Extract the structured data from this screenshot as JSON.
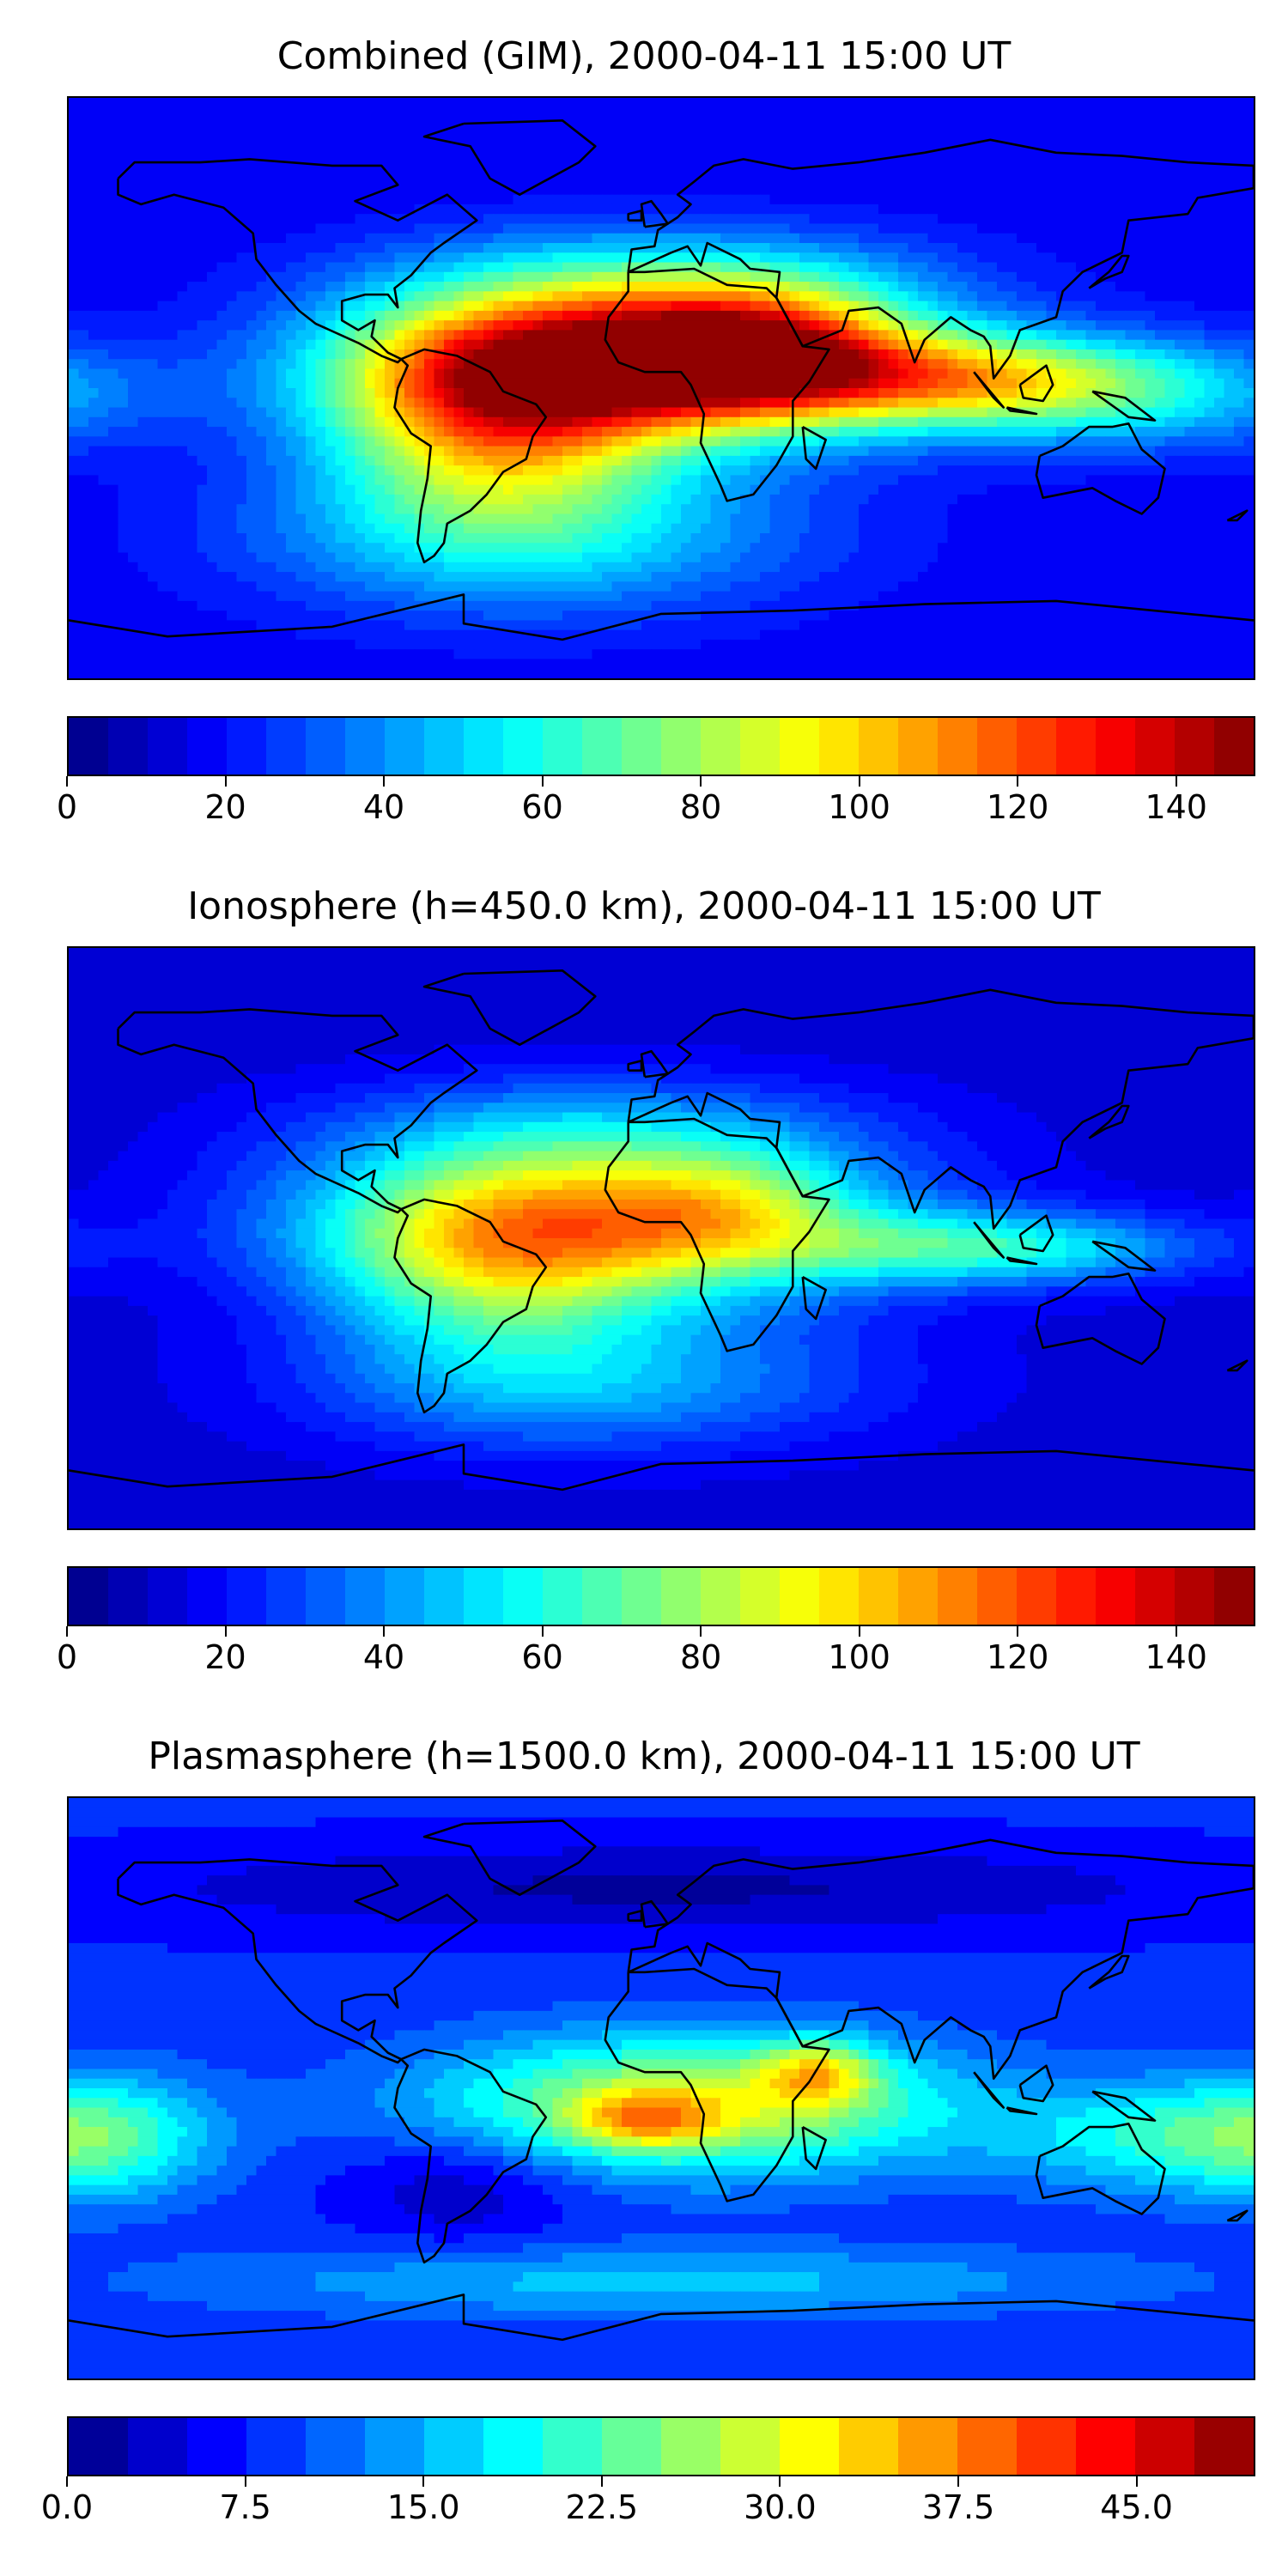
{
  "chart_data": [
    {
      "type": "heatmap",
      "title": "Combined (GIM), 2000-04-11 15:00 UT",
      "colormap": "jet",
      "colorbar": {
        "min": 0,
        "max": 150,
        "levels": 30,
        "ticks": [
          0,
          20,
          40,
          60,
          80,
          100,
          120,
          140
        ],
        "tick_labels": [
          "0",
          "20",
          "40",
          "60",
          "80",
          "100",
          "120",
          "140"
        ]
      },
      "field": {
        "background": 16,
        "blobs": [
          {
            "lon": -10,
            "lat": 8,
            "sx": 55,
            "sy": 16,
            "amp": 120
          },
          {
            "lon": -50,
            "lat": -10,
            "sx": 35,
            "sy": 22,
            "amp": 70
          },
          {
            "lon": 30,
            "lat": 12,
            "sx": 30,
            "sy": 14,
            "amp": 60
          },
          {
            "lon": 90,
            "lat": 3,
            "sx": 40,
            "sy": 10,
            "amp": 55
          },
          {
            "lon": 140,
            "lat": -2,
            "sx": 45,
            "sy": 12,
            "amp": 35
          },
          {
            "lon": -40,
            "lat": -45,
            "sx": 60,
            "sy": 18,
            "amp": 35
          },
          {
            "lon": 0,
            "lat": 35,
            "sx": 60,
            "sy": 12,
            "amp": 25
          }
        ]
      }
    },
    {
      "type": "heatmap",
      "title": "Ionosphere  (h=450.0 km), 2000-04-11 15:00 UT",
      "colormap": "jet",
      "colorbar": {
        "min": 0,
        "max": 150,
        "levels": 30,
        "ticks": [
          0,
          20,
          40,
          60,
          80,
          100,
          120,
          140
        ],
        "tick_labels": [
          "0",
          "20",
          "40",
          "60",
          "80",
          "100",
          "120",
          "140"
        ]
      },
      "field": {
        "background": 12,
        "blobs": [
          {
            "lon": -20,
            "lat": 5,
            "sx": 60,
            "sy": 18,
            "amp": 78
          },
          {
            "lon": -50,
            "lat": -10,
            "sx": 35,
            "sy": 22,
            "amp": 40
          },
          {
            "lon": 20,
            "lat": 10,
            "sx": 25,
            "sy": 12,
            "amp": 25
          },
          {
            "lon": 100,
            "lat": -3,
            "sx": 45,
            "sy": 8,
            "amp": 45
          },
          {
            "lon": -20,
            "lat": -45,
            "sx": 60,
            "sy": 15,
            "amp": 30
          },
          {
            "lon": -20,
            "lat": 35,
            "sx": 60,
            "sy": 12,
            "amp": 20
          }
        ]
      }
    },
    {
      "type": "heatmap",
      "title": "Plasmasphere (h=1500.0 km), 2000-04-11 15:00 UT",
      "colormap": "jet",
      "colorbar": {
        "min": 0,
        "max": 50,
        "levels": 20,
        "ticks": [
          0,
          7.5,
          15,
          22.5,
          30,
          37.5,
          45
        ],
        "tick_labels": [
          "0.0",
          "7.5",
          "15.0",
          "22.5",
          "30.0",
          "37.5",
          "45.0"
        ]
      },
      "field": {
        "background": 8,
        "blobs": [
          {
            "lon": 10,
            "lat": -5,
            "sx": 55,
            "sy": 15,
            "amp": 22
          },
          {
            "lon": -5,
            "lat": -10,
            "sx": 15,
            "sy": 6,
            "amp": 12
          },
          {
            "lon": 48,
            "lat": 5,
            "sx": 12,
            "sy": 7,
            "amp": 14
          },
          {
            "lon": -170,
            "lat": -15,
            "sx": 25,
            "sy": 14,
            "amp": 12
          },
          {
            "lon": 150,
            "lat": -15,
            "sx": 35,
            "sy": 12,
            "amp": 10
          },
          {
            "lon": 0,
            "lat": -60,
            "sx": 100,
            "sy": 8,
            "amp": 8
          },
          {
            "lon": -60,
            "lat": -30,
            "sx": 25,
            "sy": 12,
            "amp": -6
          },
          {
            "lon": 0,
            "lat": 62,
            "sx": 120,
            "sy": 10,
            "amp": -6
          }
        ]
      }
    }
  ]
}
